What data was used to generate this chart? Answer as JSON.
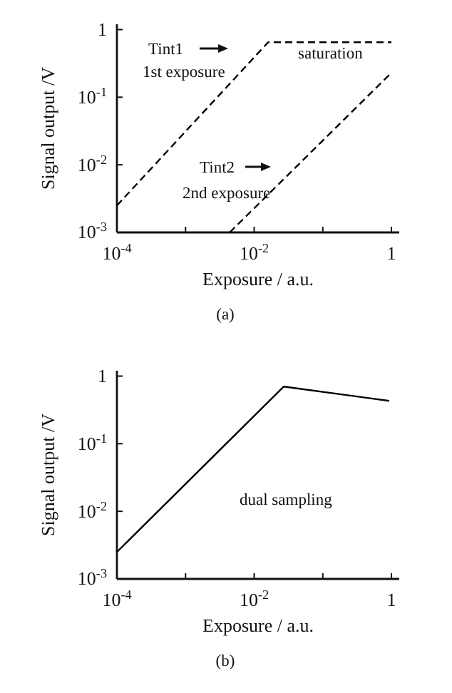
{
  "chart_data": [
    {
      "type": "line",
      "xlabel": "Exposure / a.u.",
      "ylabel": "Signal output /V",
      "log": "xy",
      "line_style": "dashed",
      "grid": false,
      "xlim": [
        0.0001,
        1.3
      ],
      "ylim": [
        0.001,
        1.2
      ],
      "xticks": [
        {
          "value": 0.0001,
          "label": "10$^{-4}$"
        },
        {
          "value": 0.001,
          "label": null
        },
        {
          "value": 0.01,
          "label": "10$^{-2}$"
        },
        {
          "value": 0.1,
          "label": null
        },
        {
          "value": 1,
          "label": "1"
        }
      ],
      "yticks": [
        {
          "value": 0.001,
          "label": "10$^{-3}$"
        },
        {
          "value": 0.01,
          "label": "10$^{-2}$"
        },
        {
          "value": 0.1,
          "label": "10$^{-1}$"
        },
        {
          "value": 1,
          "label": "1"
        }
      ],
      "series": [
        {
          "color": "#000000",
          "x": [
            0.0001,
            0.016,
            1
          ],
          "values": [
            0.0025,
            0.65,
            0.65
          ]
        },
        {
          "color": "#000000",
          "x": [
            0.0044,
            1
          ],
          "values": [
            0.001,
            0.23
          ]
        }
      ],
      "annotations": [
        "Tint1",
        "1st exposure",
        "saturation",
        "Tint2",
        "2nd exposure",
        "(a)"
      ]
    },
    {
      "type": "line",
      "xlabel": "Exposure / a.u.",
      "ylabel": "Signal output /V",
      "log": "xy",
      "line_style": "solid",
      "grid": false,
      "xlim": [
        0.0001,
        1.3
      ],
      "ylim": [
        0.001,
        1.2
      ],
      "xticks": [
        {
          "value": 0.0001,
          "label": "10$^{-4}$"
        },
        {
          "value": 0.001,
          "label": null
        },
        {
          "value": 0.01,
          "label": "10$^{-2}$"
        },
        {
          "value": 0.1,
          "label": null
        },
        {
          "value": 1,
          "label": "1"
        }
      ],
      "yticks": [
        {
          "value": 0.001,
          "label": "10$^{-3}$"
        },
        {
          "value": 0.01,
          "label": "10$^{-2}$"
        },
        {
          "value": 0.1,
          "label": "10$^{-1}$"
        },
        {
          "value": 1,
          "label": "1"
        }
      ],
      "series": [
        {
          "color": "#000000",
          "x": [
            0.0001,
            0.027,
            0.93
          ],
          "values": [
            0.0025,
            0.7,
            0.43
          ]
        }
      ],
      "annotations": [
        "dual sampling",
        "(b)"
      ]
    }
  ]
}
